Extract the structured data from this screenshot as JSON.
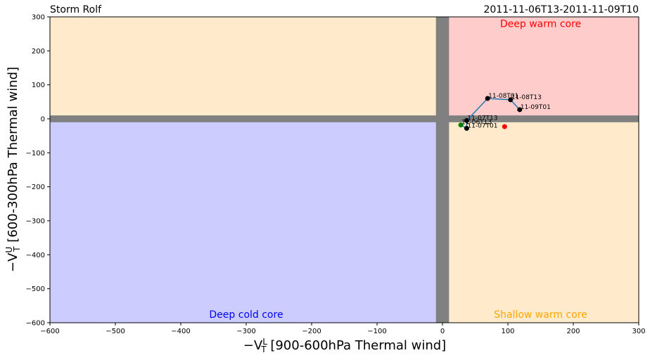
{
  "chart_data": {
    "type": "scatter",
    "title_left": "Storm Rolf",
    "title_right": "2011-11-06T13-2011-11-09T10",
    "xlabel_main": "−V",
    "xlabel_sup": "L",
    "xlabel_sub": "T",
    "xlabel_rest": " [900-600hPa Thermal wind]",
    "ylabel_main": "−V",
    "ylabel_sup": "U",
    "ylabel_sub": "T",
    "ylabel_rest": " [600-300hPa Thermal wind]",
    "xlim": [
      -600,
      300
    ],
    "ylim": [
      -600,
      300
    ],
    "xticks": [
      -600,
      -500,
      -400,
      -300,
      -200,
      -100,
      0,
      100,
      200,
      300
    ],
    "yticks": [
      -600,
      -500,
      -400,
      -300,
      -200,
      -100,
      0,
      100,
      200,
      300
    ],
    "grid": false,
    "regions": [
      {
        "name": "Deep warm core",
        "x": [
          0,
          300
        ],
        "y": [
          0,
          300
        ],
        "fill": "#ffcccc",
        "label_color": "#ff0000",
        "label_x": 150,
        "label_y": 280
      },
      {
        "name": "",
        "x": [
          -600,
          0
        ],
        "y": [
          0,
          300
        ],
        "fill": "#ffebcc",
        "label_color": "",
        "label_x": 0,
        "label_y": 0
      },
      {
        "name": "Deep cold core",
        "x": [
          -600,
          0
        ],
        "y": [
          -600,
          0
        ],
        "fill": "#ccccff",
        "label_color": "#0000ff",
        "label_x": -300,
        "label_y": -575
      },
      {
        "name": "Shallow warm core",
        "x": [
          0,
          300
        ],
        "y": [
          -600,
          0
        ],
        "fill": "#ffebcc",
        "label_color": "#ffa500",
        "label_x": 150,
        "label_y": -575
      }
    ],
    "axis_band_color": "#808080",
    "axis_band_halfwidth": 10,
    "track_color": "#1f77b4",
    "track": [
      {
        "x": 28,
        "y": -18
      },
      {
        "x": 37,
        "y": -28
      },
      {
        "x": 37,
        "y": -5
      },
      {
        "x": 69,
        "y": 60
      },
      {
        "x": 104,
        "y": 56
      },
      {
        "x": 118,
        "y": 27
      }
    ],
    "points": [
      {
        "label": "11-06T13",
        "x": 28,
        "y": -18,
        "color": "#008000"
      },
      {
        "label": "11-07T01",
        "x": 37,
        "y": -28,
        "color": "#000000"
      },
      {
        "label": "11-07T13",
        "x": 37,
        "y": -5,
        "color": "#000000"
      },
      {
        "label": "11-08T01",
        "x": 69,
        "y": 60,
        "color": "#000000"
      },
      {
        "label": "11-08T13",
        "x": 104,
        "y": 56,
        "color": "#000000"
      },
      {
        "label": "11-09T01",
        "x": 118,
        "y": 27,
        "color": "#000000"
      },
      {
        "label": "",
        "x": 95,
        "y": -23,
        "color": "#ff0000"
      }
    ]
  }
}
